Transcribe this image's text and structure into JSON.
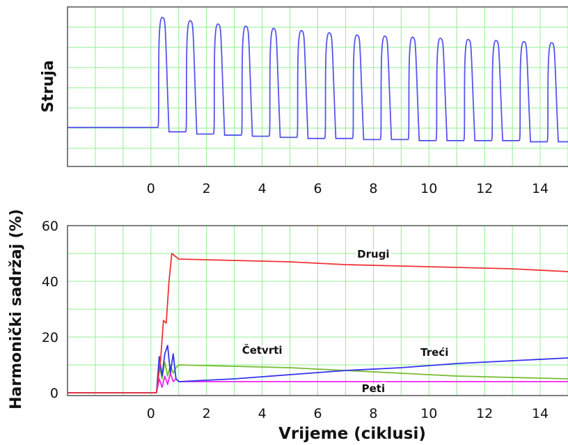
{
  "chart_data": [
    {
      "type": "line",
      "ylabel": "Struja",
      "xlim": [
        -3,
        15
      ],
      "xticks": [
        0,
        2,
        4,
        6,
        8,
        10,
        12,
        14
      ],
      "grid": true,
      "colors": {
        "line": "#5555ee",
        "grid": "#90ee90"
      },
      "series": [
        {
          "cycles_start": 0.2,
          "cycle_period": 1.0,
          "baseline_before": 0.0,
          "peaks": [
            1.0,
            0.97,
            0.94,
            0.92,
            0.9,
            0.88,
            0.86,
            0.84,
            0.83,
            0.82,
            0.81,
            0.8,
            0.79,
            0.78,
            0.77
          ],
          "troughs": [
            -0.04,
            -0.06,
            -0.07,
            -0.08,
            -0.09,
            -0.1,
            -0.1,
            -0.11,
            -0.11,
            -0.12,
            -0.12,
            -0.12,
            -0.12,
            -0.13,
            -0.13
          ]
        }
      ]
    },
    {
      "type": "line",
      "ylabel": "Harmonički sadržaj (%)",
      "xlabel": "Vrijeme (ciklusi)",
      "xlim": [
        -3,
        15
      ],
      "ylim": [
        -1,
        60
      ],
      "xticks": [
        0,
        2,
        4,
        6,
        8,
        10,
        12,
        14
      ],
      "yticks": [
        0,
        20,
        40,
        60
      ],
      "grid": true,
      "series": [
        {
          "name": "Drugi",
          "color": "#ee3333",
          "x": [
            -3,
            0.2,
            0.35,
            0.45,
            0.55,
            0.65,
            0.75,
            1,
            3,
            5,
            7,
            9,
            11,
            13,
            15
          ],
          "y": [
            0,
            0,
            12,
            26,
            25,
            40,
            50,
            48,
            47.5,
            47,
            46,
            45.5,
            45,
            44.5,
            43.5
          ]
        },
        {
          "name": "Treći",
          "color": "#3333ee",
          "x": [
            -3,
            0.2,
            0.3,
            0.4,
            0.5,
            0.6,
            0.7,
            0.8,
            0.9,
            1,
            3,
            5,
            7,
            9,
            11,
            13,
            15
          ],
          "y": [
            0,
            0,
            13,
            6,
            14,
            17,
            7,
            14,
            5,
            4,
            5,
            6.5,
            8,
            9,
            10.5,
            11.5,
            12.5
          ]
        },
        {
          "name": "Četvrti",
          "color": "#77bb33",
          "x": [
            -3,
            0.2,
            0.3,
            0.4,
            0.5,
            0.6,
            0.7,
            0.8,
            0.9,
            1,
            3,
            5,
            7,
            9,
            11,
            13,
            15
          ],
          "y": [
            0,
            0,
            10,
            5,
            11,
            6,
            10,
            7,
            9,
            10,
            9.5,
            9,
            8,
            7,
            6,
            5.5,
            5
          ]
        },
        {
          "name": "Peti",
          "color": "#ee22ee",
          "x": [
            -3,
            0.2,
            0.3,
            0.4,
            0.5,
            0.6,
            0.7,
            0.8,
            0.9,
            1,
            3,
            5,
            7,
            9,
            11,
            13,
            15
          ],
          "y": [
            0,
            0,
            5,
            2,
            6,
            3,
            7,
            4,
            5,
            4,
            4,
            4,
            4,
            4,
            4,
            4,
            4
          ]
        }
      ]
    }
  ]
}
